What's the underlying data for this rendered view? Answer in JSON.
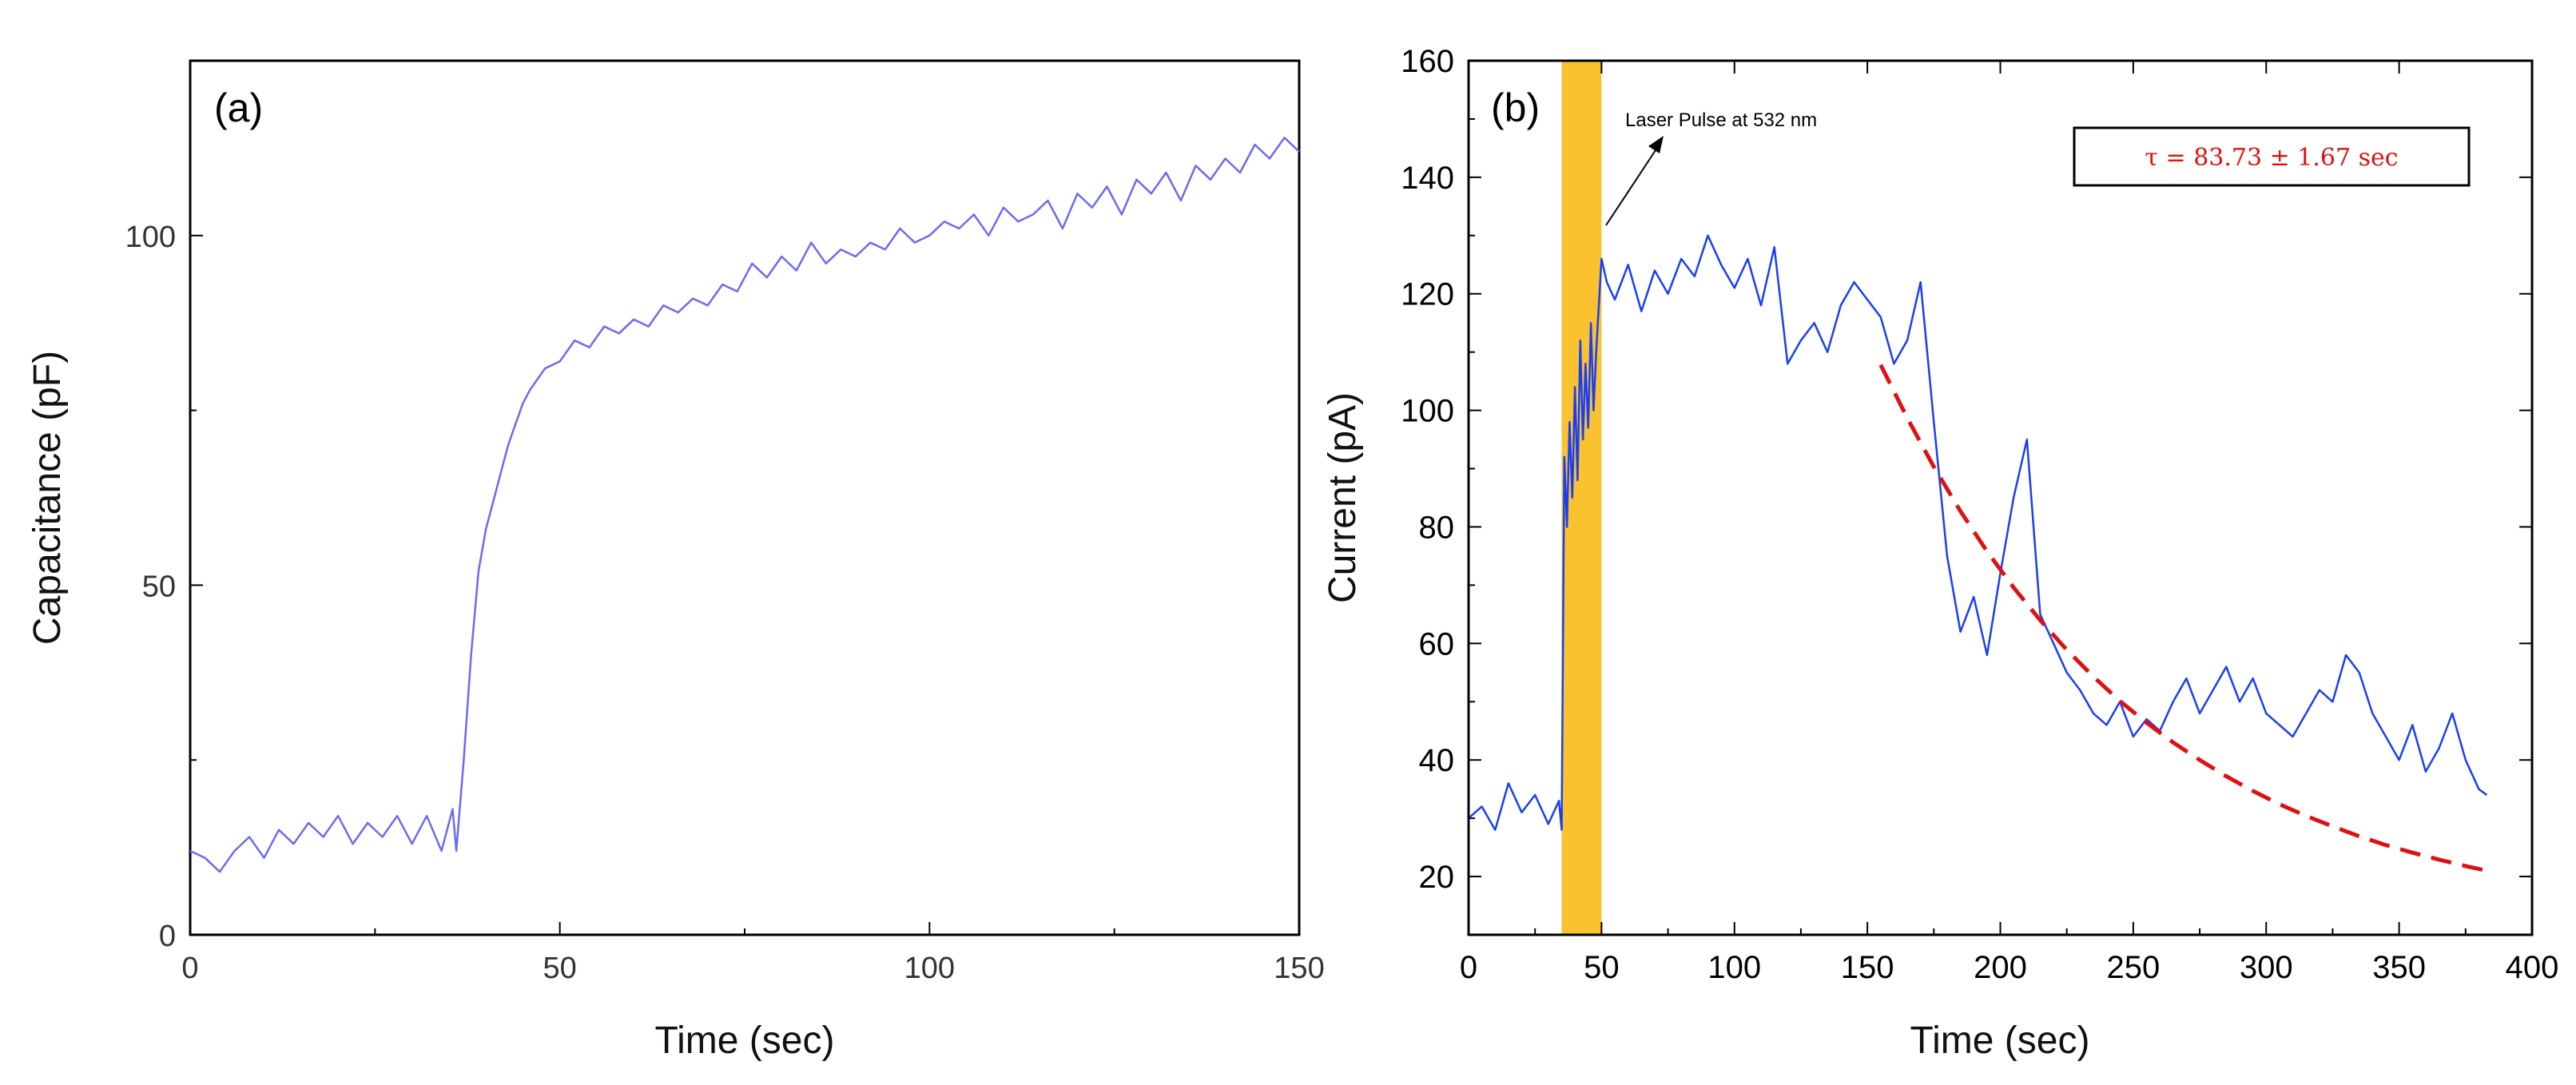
{
  "colors": {
    "panel_a_line": "#6b6bf2",
    "panel_b_line": "#1a3ff2",
    "fit_line": "#e01010",
    "highlight": "#fbc230",
    "frame": "#000000"
  },
  "chart_data": [
    {
      "type": "line",
      "panel_label": "(a)",
      "xlabel": "Time (sec)",
      "ylabel": "Capacitance (pF)",
      "xlim": [
        0,
        150
      ],
      "ylim": [
        0,
        125
      ],
      "xticks": [
        0,
        50,
        100,
        150
      ],
      "yticks": [
        0,
        50,
        100
      ],
      "series": [
        {
          "name": "Capacitance",
          "x": [
            0,
            2,
            4,
            6,
            8,
            10,
            12,
            14,
            16,
            18,
            20,
            22,
            24,
            26,
            28,
            30,
            32,
            34,
            35.5,
            36,
            37,
            38,
            39,
            40,
            41,
            42,
            43,
            44,
            45,
            46,
            48,
            50,
            52,
            54,
            56,
            58,
            60,
            62,
            64,
            66,
            68,
            70,
            72,
            74,
            76,
            78,
            80,
            82,
            84,
            86,
            88,
            90,
            92,
            94,
            96,
            98,
            100,
            102,
            104,
            106,
            108,
            110,
            112,
            114,
            116,
            118,
            120,
            122,
            124,
            126,
            128,
            130,
            132,
            134,
            136,
            138,
            140,
            142,
            144,
            146,
            148,
            150
          ],
          "y": [
            12,
            11,
            9,
            12,
            14,
            11,
            15,
            13,
            16,
            14,
            17,
            13,
            16,
            14,
            17,
            13,
            17,
            12,
            18,
            12,
            25,
            40,
            52,
            58,
            62,
            66,
            70,
            73,
            76,
            78,
            81,
            82,
            85,
            84,
            87,
            86,
            88,
            87,
            90,
            89,
            91,
            90,
            93,
            92,
            96,
            94,
            97,
            95,
            99,
            96,
            98,
            97,
            99,
            98,
            101,
            99,
            100,
            102,
            101,
            103,
            100,
            104,
            102,
            103,
            105,
            101,
            106,
            104,
            107,
            103,
            108,
            106,
            109,
            105,
            110,
            108,
            111,
            109,
            113,
            111,
            114,
            112
          ]
        }
      ]
    },
    {
      "type": "line",
      "panel_label": "(b)",
      "xlabel": "Time (sec)",
      "ylabel": "Current (pA)",
      "xlim": [
        0,
        400
      ],
      "ylim": [
        10,
        160
      ],
      "xticks": [
        0,
        50,
        100,
        150,
        200,
        250,
        300,
        350,
        400
      ],
      "yticks": [
        20,
        40,
        60,
        80,
        100,
        120,
        140,
        160
      ],
      "highlight_x_range": [
        35,
        50
      ],
      "annotation": {
        "text": "Laser Pulse at 532 nm",
        "x": 50,
        "y": 132
      },
      "fit_label": "τ = 83.73 ± 1.67 sec",
      "series": [
        {
          "name": "Current",
          "x": [
            0,
            5,
            10,
            15,
            20,
            25,
            30,
            34,
            35,
            36,
            37,
            38,
            39,
            40,
            41,
            42,
            43,
            44,
            45,
            46,
            47,
            48,
            49,
            50,
            52,
            55,
            60,
            65,
            70,
            75,
            80,
            85,
            90,
            95,
            100,
            105,
            110,
            115,
            120,
            125,
            130,
            135,
            140,
            145,
            150,
            155,
            160,
            165,
            170,
            175,
            180,
            185,
            190,
            195,
            200,
            205,
            210,
            215,
            220,
            225,
            230,
            235,
            240,
            245,
            250,
            255,
            260,
            265,
            270,
            275,
            280,
            285,
            290,
            295,
            300,
            305,
            310,
            315,
            320,
            325,
            330,
            335,
            340,
            345,
            350,
            355,
            360,
            365,
            370,
            375,
            380,
            383
          ],
          "y": [
            30,
            32,
            28,
            36,
            31,
            34,
            29,
            33,
            28,
            92,
            80,
            98,
            85,
            104,
            88,
            112,
            95,
            108,
            97,
            115,
            100,
            110,
            118,
            126,
            122,
            119,
            125,
            117,
            124,
            120,
            126,
            123,
            130,
            125,
            121,
            126,
            118,
            128,
            108,
            112,
            115,
            110,
            118,
            122,
            119,
            116,
            108,
            112,
            122,
            98,
            75,
            62,
            68,
            58,
            72,
            85,
            95,
            65,
            60,
            55,
            52,
            48,
            46,
            50,
            44,
            47,
            45,
            50,
            54,
            48,
            52,
            56,
            50,
            54,
            48,
            46,
            44,
            48,
            52,
            50,
            58,
            55,
            48,
            44,
            40,
            46,
            38,
            42,
            48,
            40,
            35,
            34
          ]
        },
        {
          "name": "Exponential fit",
          "x": [
            155,
            165,
            175,
            185,
            195,
            205,
            215,
            225,
            235,
            245,
            255,
            265,
            275,
            285,
            295,
            305,
            315,
            325,
            335,
            345,
            355,
            365,
            375,
            383
          ],
          "y": [
            107.8,
            98.7,
            90.3,
            82.7,
            75.8,
            69.6,
            64.0,
            58.9,
            54.3,
            50.1,
            46.4,
            43.0,
            40.0,
            37.2,
            34.7,
            32.4,
            30.4,
            28.6,
            26.9,
            25.4,
            24.1,
            22.9,
            21.8,
            21.0
          ]
        }
      ]
    }
  ]
}
